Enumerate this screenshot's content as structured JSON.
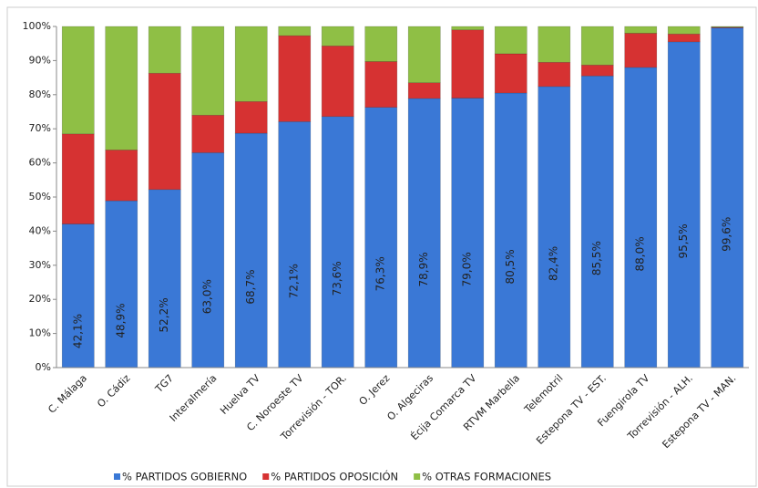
{
  "chart_data": {
    "type": "stacked_bar",
    "categories": [
      "C. Málaga",
      "O. Cádiz",
      "TG7",
      "Interalmería",
      "Huelva TV",
      "C. Noroeste TV",
      "Torrevisión - TOR.",
      "O. Jerez",
      "O. Algeciras",
      "Écija Comarca TV",
      "RTVM Marbella",
      "Telemotril",
      "Estepona TV - EST.",
      "Fuengirola TV",
      "Torrevisión - ALH.",
      "Estepona TV - MAN."
    ],
    "series": [
      {
        "name": "% PARTIDOS GOBIERNO",
        "color": "#3a78d6",
        "values": [
          42.1,
          48.9,
          52.2,
          63.0,
          68.7,
          72.1,
          73.6,
          76.3,
          78.9,
          79.0,
          80.5,
          82.4,
          85.5,
          88.0,
          95.5,
          99.6
        ],
        "value_labels": [
          "42,1%",
          "48,9%",
          "52,2%",
          "63,0%",
          "68,7%",
          "72,1%",
          "73,6%",
          "76,3%",
          "78,9%",
          "79,0%",
          "80,5%",
          "82,4%",
          "85,5%",
          "88,0%",
          "95,5%",
          "99,6%"
        ]
      },
      {
        "name": "% PARTIDOS OPOSICIÓN",
        "color": "#d63232",
        "values": [
          26.4,
          14.9,
          34.1,
          11.0,
          9.3,
          25.2,
          20.7,
          13.4,
          4.6,
          20.0,
          11.5,
          7.1,
          3.2,
          10.0,
          2.3,
          0.2
        ]
      },
      {
        "name": "% OTRAS FORMACIONES",
        "color": "#8fbf45",
        "values": [
          31.5,
          36.2,
          13.7,
          26.0,
          22.0,
          2.7,
          5.7,
          10.3,
          16.5,
          1.0,
          8.0,
          10.5,
          11.3,
          2.0,
          2.2,
          0.2
        ]
      }
    ],
    "ylim": [
      0,
      100
    ],
    "yticks": [
      {
        "value": 0,
        "label": "0%"
      },
      {
        "value": 10,
        "label": "10%"
      },
      {
        "value": 20,
        "label": "20%"
      },
      {
        "value": 30,
        "label": "30%"
      },
      {
        "value": 40,
        "label": "40%"
      },
      {
        "value": 50,
        "label": "50%"
      },
      {
        "value": 60,
        "label": "60%"
      },
      {
        "value": 70,
        "label": "70%"
      },
      {
        "value": 80,
        "label": "80%"
      },
      {
        "value": 90,
        "label": "90%"
      },
      {
        "value": 100,
        "label": "100%"
      }
    ],
    "grid": false,
    "legend": "bottom"
  }
}
